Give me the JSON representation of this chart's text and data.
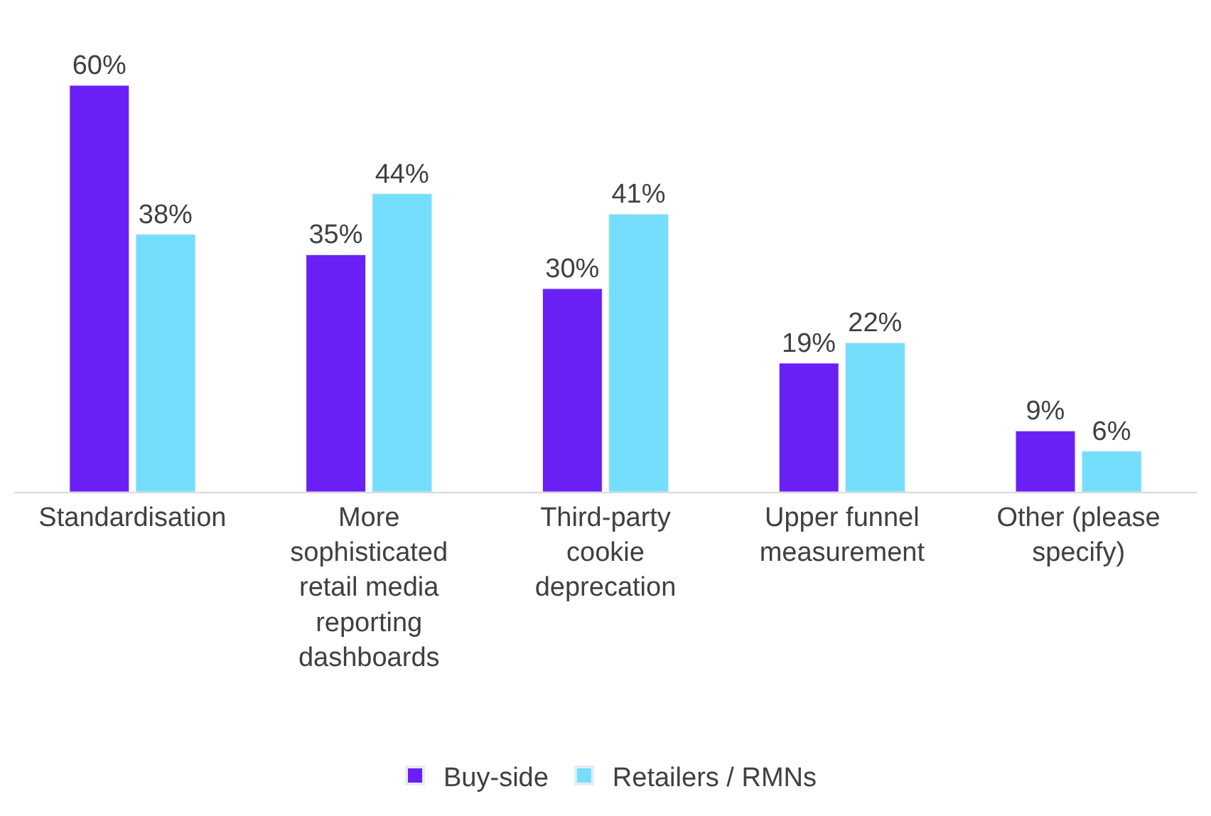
{
  "chart_data": {
    "type": "bar",
    "categories": [
      "Standardisation",
      "More sophisticated retail media reporting dashboards",
      "Third-party cookie deprecation",
      "Upper funnel measurement",
      "Other (please specify)"
    ],
    "series": [
      {
        "name": "Buy-side",
        "color": "#6a1ff5",
        "values": [
          60,
          35,
          30,
          19,
          9
        ],
        "value_labels": [
          "60%",
          "35%",
          "30%",
          "19%",
          "9%"
        ]
      },
      {
        "name": "Retailers / RMNs",
        "color": "#75defc",
        "values": [
          38,
          44,
          41,
          22,
          6
        ],
        "value_labels": [
          "38%",
          "44%",
          "41%",
          "22%",
          "6%"
        ]
      }
    ],
    "legend": "bottom"
  }
}
